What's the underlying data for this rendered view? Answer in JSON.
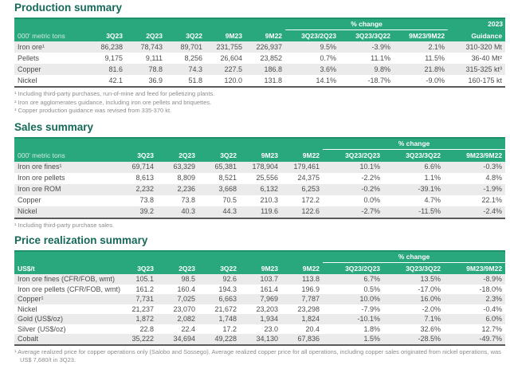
{
  "colors": {
    "header_green": "#29a87e",
    "header_green_dark": "#1f9168",
    "title_teal": "#17695a",
    "row_stripe": "#ebebeb",
    "body_text": "#4d4d4d",
    "footnote_gray": "#8c8c8c"
  },
  "tables": {
    "production": {
      "title": "Production summary",
      "unit_label": "000' metric tons",
      "pct_change_label": "% change",
      "guidance_top": "2023",
      "guidance_bottom": "Guidance",
      "columns": [
        "3Q23",
        "2Q23",
        "3Q22",
        "9M23",
        "9M22",
        "3Q23/2Q23",
        "3Q23/3Q22",
        "9M23/9M22"
      ],
      "rows": [
        {
          "label": "Iron ore¹",
          "values": [
            "86,238",
            "78,743",
            "89,701",
            "231,755",
            "226,937",
            "9.5%",
            "-3.9%",
            "2.1%",
            "310-320 Mt"
          ]
        },
        {
          "label": "Pellets",
          "values": [
            "9,175",
            "9,111",
            "8,256",
            "26,604",
            "23,852",
            "0.7%",
            "11.1%",
            "11.5%",
            "36-40 Mt²"
          ]
        },
        {
          "label": "Copper",
          "values": [
            "81.6",
            "78.8",
            "74.3",
            "227.5",
            "186.8",
            "3.6%",
            "9.8%",
            "21.8%",
            "315-325 kt³"
          ]
        },
        {
          "label": "Nickel",
          "values": [
            "42.1",
            "36.9",
            "51.8",
            "120.0",
            "131.8",
            "14.1%",
            "-18.7%",
            "-9.0%",
            "160-175 kt"
          ]
        }
      ],
      "footnotes": [
        "¹ Including third-party purchases, run-of-mine and feed for pelletizing plants.",
        "² Iron ore agglomerates guidance, including iron ore pellets and briquettes.",
        "³ Copper production guidance was revised from 335-370 kt."
      ]
    },
    "sales": {
      "title": "Sales summary",
      "unit_label": "000' metric tons",
      "pct_change_label": "% change",
      "columns": [
        "3Q23",
        "2Q23",
        "3Q22",
        "9M23",
        "9M22",
        "3Q23/2Q23",
        "3Q23/3Q22",
        "9M23/9M22"
      ],
      "rows": [
        {
          "label": "Iron ore fines¹",
          "values": [
            "69,714",
            "63,329",
            "65,381",
            "178,904",
            "179,461",
            "10.1%",
            "6.6%",
            "-0.3%"
          ]
        },
        {
          "label": "Iron ore pellets",
          "values": [
            "8,613",
            "8,809",
            "8,521",
            "25,556",
            "24,375",
            "-2.2%",
            "1.1%",
            "4.8%"
          ]
        },
        {
          "label": "Iron ore ROM",
          "values": [
            "2,232",
            "2,236",
            "3,668",
            "6,132",
            "6,253",
            "-0.2%",
            "-39.1%",
            "-1.9%"
          ]
        },
        {
          "label": "Copper",
          "values": [
            "73.8",
            "73.8",
            "70.5",
            "210.3",
            "172.2",
            "0.0%",
            "4.7%",
            "22.1%"
          ]
        },
        {
          "label": "Nickel",
          "values": [
            "39.2",
            "40.3",
            "44.3",
            "119.6",
            "122.6",
            "-2.7%",
            "-11.5%",
            "-2.4%"
          ]
        }
      ],
      "footnotes": [
        "¹ Including third-party purchase sales."
      ]
    },
    "price": {
      "title": "Price realization summary",
      "unit_label": "US$/t",
      "pct_change_label": "% change",
      "columns": [
        "3Q23",
        "2Q23",
        "3Q22",
        "9M23",
        "9M22",
        "3Q23/2Q23",
        "3Q23/3Q22",
        "9M23/9M22"
      ],
      "rows": [
        {
          "label": "Iron ore fines (CFR/FOB, wmt)",
          "values": [
            "105.1",
            "98.5",
            "92.6",
            "103.7",
            "113.8",
            "6.7%",
            "13.5%",
            "-8.9%"
          ]
        },
        {
          "label": "Iron ore pellets (CFR/FOB, wmt)",
          "values": [
            "161.2",
            "160.4",
            "194.3",
            "161.4",
            "196.9",
            "0.5%",
            "-17.0%",
            "-18.0%"
          ]
        },
        {
          "label": "Copper¹",
          "values": [
            "7,731",
            "7,025",
            "6,663",
            "7,969",
            "7,787",
            "10.0%",
            "16.0%",
            "2.3%"
          ]
        },
        {
          "label": "Nickel",
          "values": [
            "21,237",
            "23,070",
            "21,672",
            "23,203",
            "23,298",
            "-7.9%",
            "-2.0%",
            "-0.4%"
          ]
        },
        {
          "label": "Gold (US$/oz)",
          "values": [
            "1,872",
            "2,082",
            "1,748",
            "1,934",
            "1,824",
            "-10.1%",
            "7.1%",
            "6.0%"
          ]
        },
        {
          "label": "Silver (US$/oz)",
          "values": [
            "22.8",
            "22.4",
            "17.2",
            "23.0",
            "20.4",
            "1.8%",
            "32.6%",
            "12.7%"
          ]
        },
        {
          "label": "Cobalt",
          "values": [
            "35,222",
            "34,694",
            "49,228",
            "34,130",
            "67,836",
            "1.5%",
            "-28.5%",
            "-49.7%"
          ]
        }
      ],
      "footnotes": [
        "¹ Average realized price for copper operations only (Salobo and Sossego). Average realized copper price for all operations, including copper sales originated from nickel operations, was US$ 7,680/t in 3Q23."
      ]
    }
  }
}
